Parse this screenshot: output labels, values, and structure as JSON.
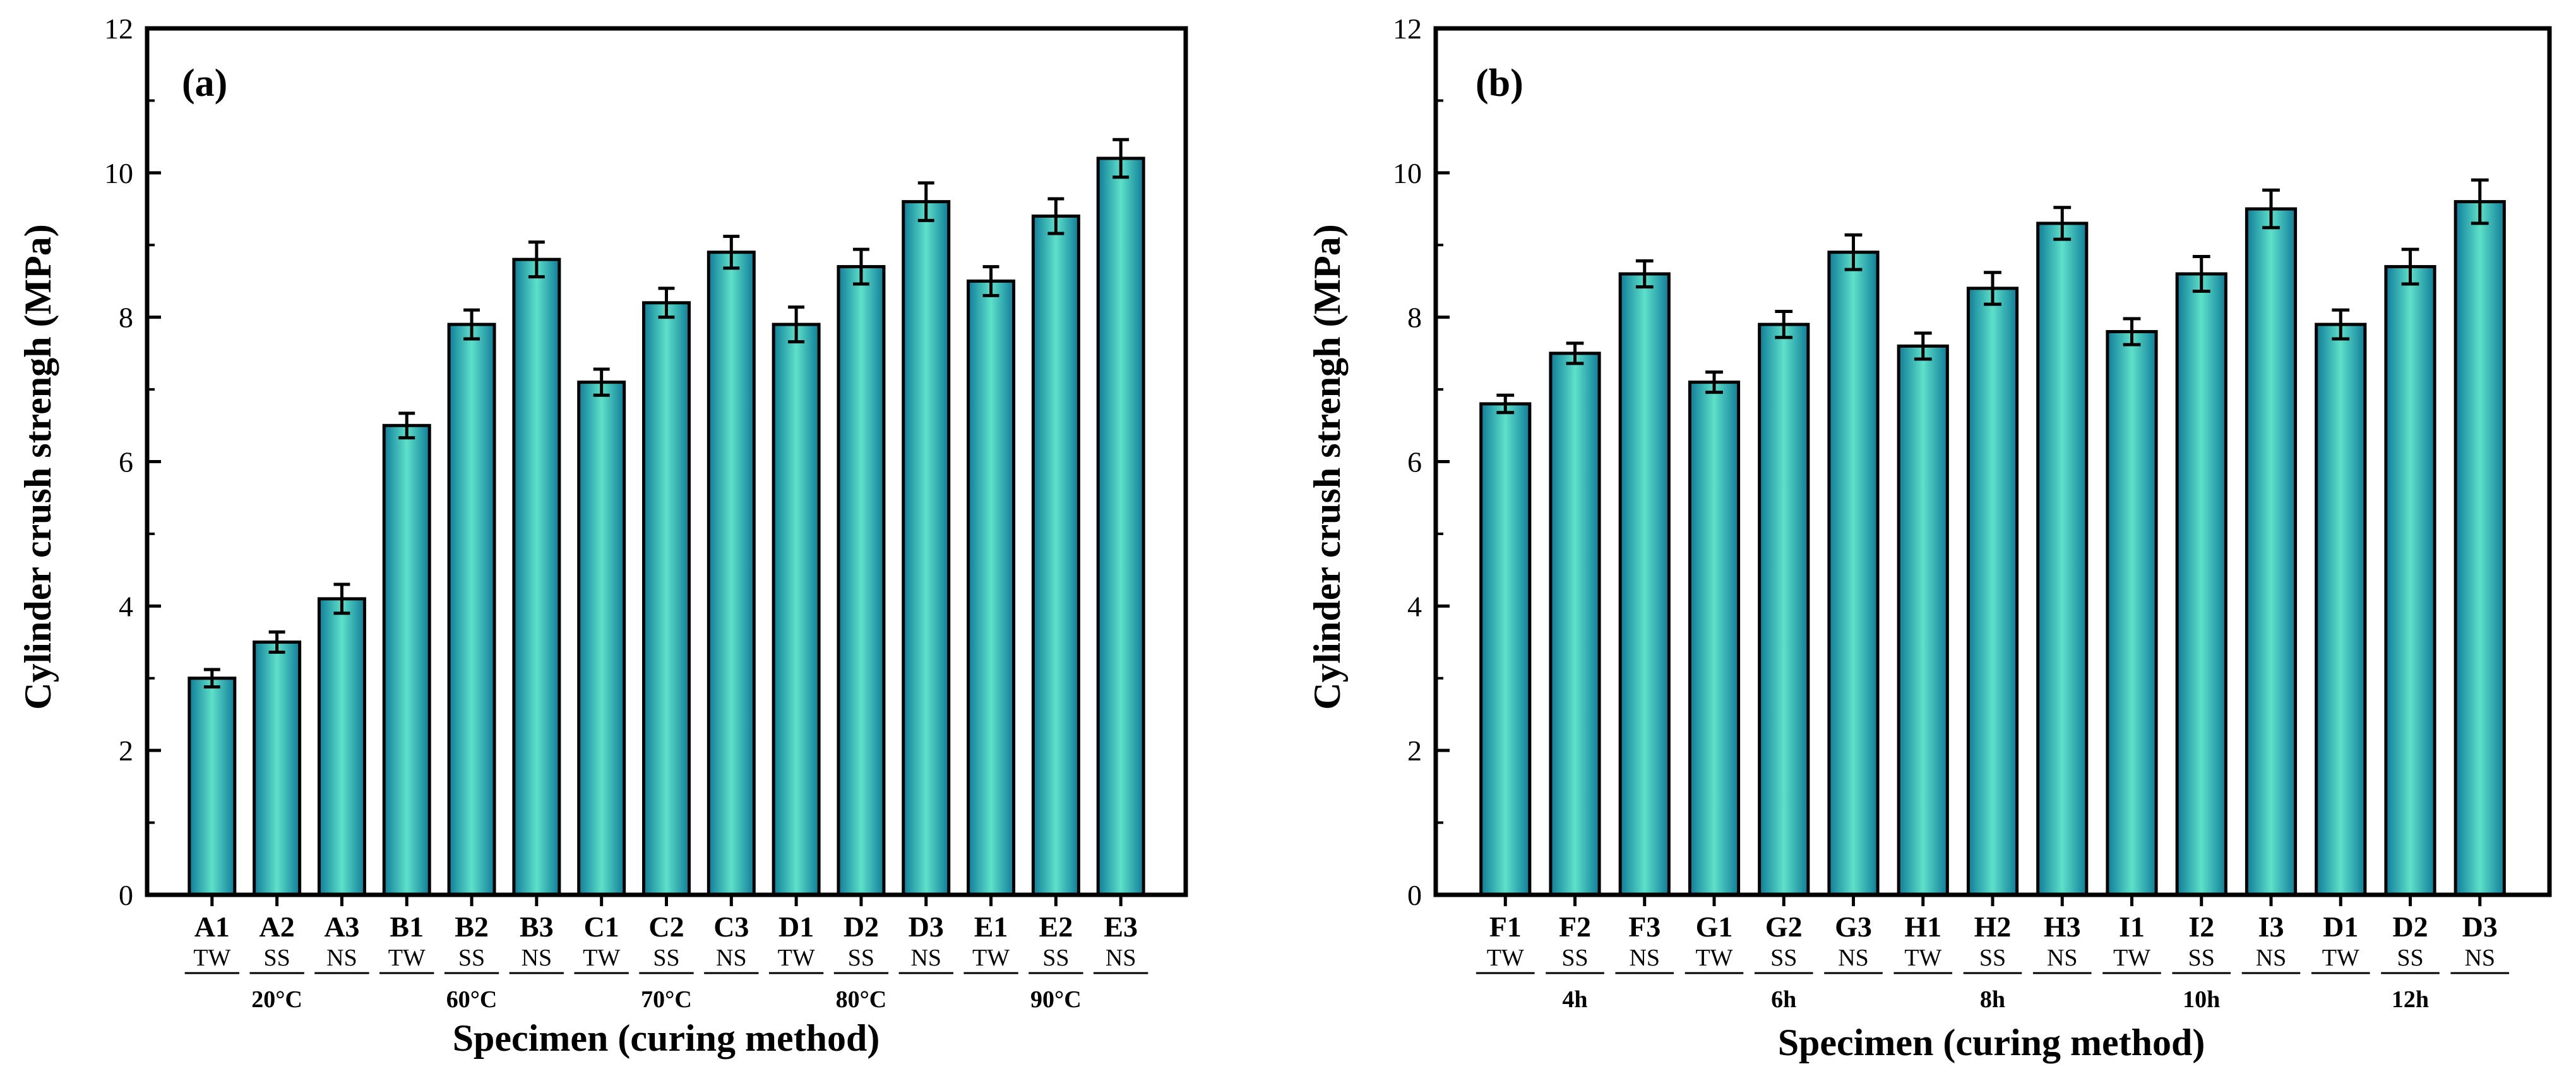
{
  "chart_data": [
    {
      "type": "bar",
      "panel_label": "(a)",
      "xlabel": "Specimen (curing method)",
      "ylabel": "Cylinder crush strengh (MPa)",
      "ylim": [
        0,
        12
      ],
      "yticks": [
        "0",
        "2",
        "4",
        "6",
        "8",
        "10",
        "12"
      ],
      "categories": [
        "A1",
        "A2",
        "A3",
        "B1",
        "B2",
        "B3",
        "C1",
        "C2",
        "C3",
        "D1",
        "D2",
        "D3",
        "E1",
        "E2",
        "E3"
      ],
      "methods": [
        "TW",
        "SS",
        "NS",
        "TW",
        "SS",
        "NS",
        "TW",
        "SS",
        "NS",
        "TW",
        "SS",
        "NS",
        "TW",
        "SS",
        "NS"
      ],
      "groups": [
        "20°C",
        "60°C",
        "70°C",
        "80°C",
        "90°C"
      ],
      "values": [
        3.0,
        3.5,
        4.1,
        6.5,
        7.9,
        8.8,
        7.1,
        8.2,
        8.9,
        7.9,
        8.7,
        9.6,
        8.5,
        9.4,
        10.2
      ],
      "errors": [
        0.12,
        0.14,
        0.2,
        0.17,
        0.2,
        0.24,
        0.18,
        0.2,
        0.22,
        0.24,
        0.24,
        0.26,
        0.2,
        0.24,
        0.26
      ],
      "bar_color": "#28b5bd",
      "grid": false
    },
    {
      "type": "bar",
      "panel_label": "(b)",
      "xlabel": "Specimen (curing method)",
      "ylabel": "Cylinder crush strengh (MPa)",
      "ylim": [
        0,
        12
      ],
      "yticks": [
        "0",
        "2",
        "4",
        "6",
        "8",
        "10",
        "12"
      ],
      "categories": [
        "F1",
        "F2",
        "F3",
        "G1",
        "G2",
        "G3",
        "H1",
        "H2",
        "H3",
        "I1",
        "I2",
        "I3",
        "D1",
        "D2",
        "D3"
      ],
      "methods": [
        "TW",
        "SS",
        "NS",
        "TW",
        "SS",
        "NS",
        "TW",
        "SS",
        "NS",
        "TW",
        "SS",
        "NS",
        "TW",
        "SS",
        "NS"
      ],
      "groups": [
        "4h",
        "6h",
        "8h",
        "10h",
        "12h"
      ],
      "values": [
        6.8,
        7.5,
        8.6,
        7.1,
        7.9,
        8.9,
        7.6,
        8.4,
        9.3,
        7.8,
        8.6,
        9.5,
        7.9,
        8.7,
        9.6
      ],
      "errors": [
        0.12,
        0.14,
        0.18,
        0.14,
        0.18,
        0.24,
        0.18,
        0.22,
        0.22,
        0.18,
        0.24,
        0.26,
        0.2,
        0.24,
        0.3
      ],
      "bar_color": "#28b5bd",
      "grid": false
    }
  ]
}
